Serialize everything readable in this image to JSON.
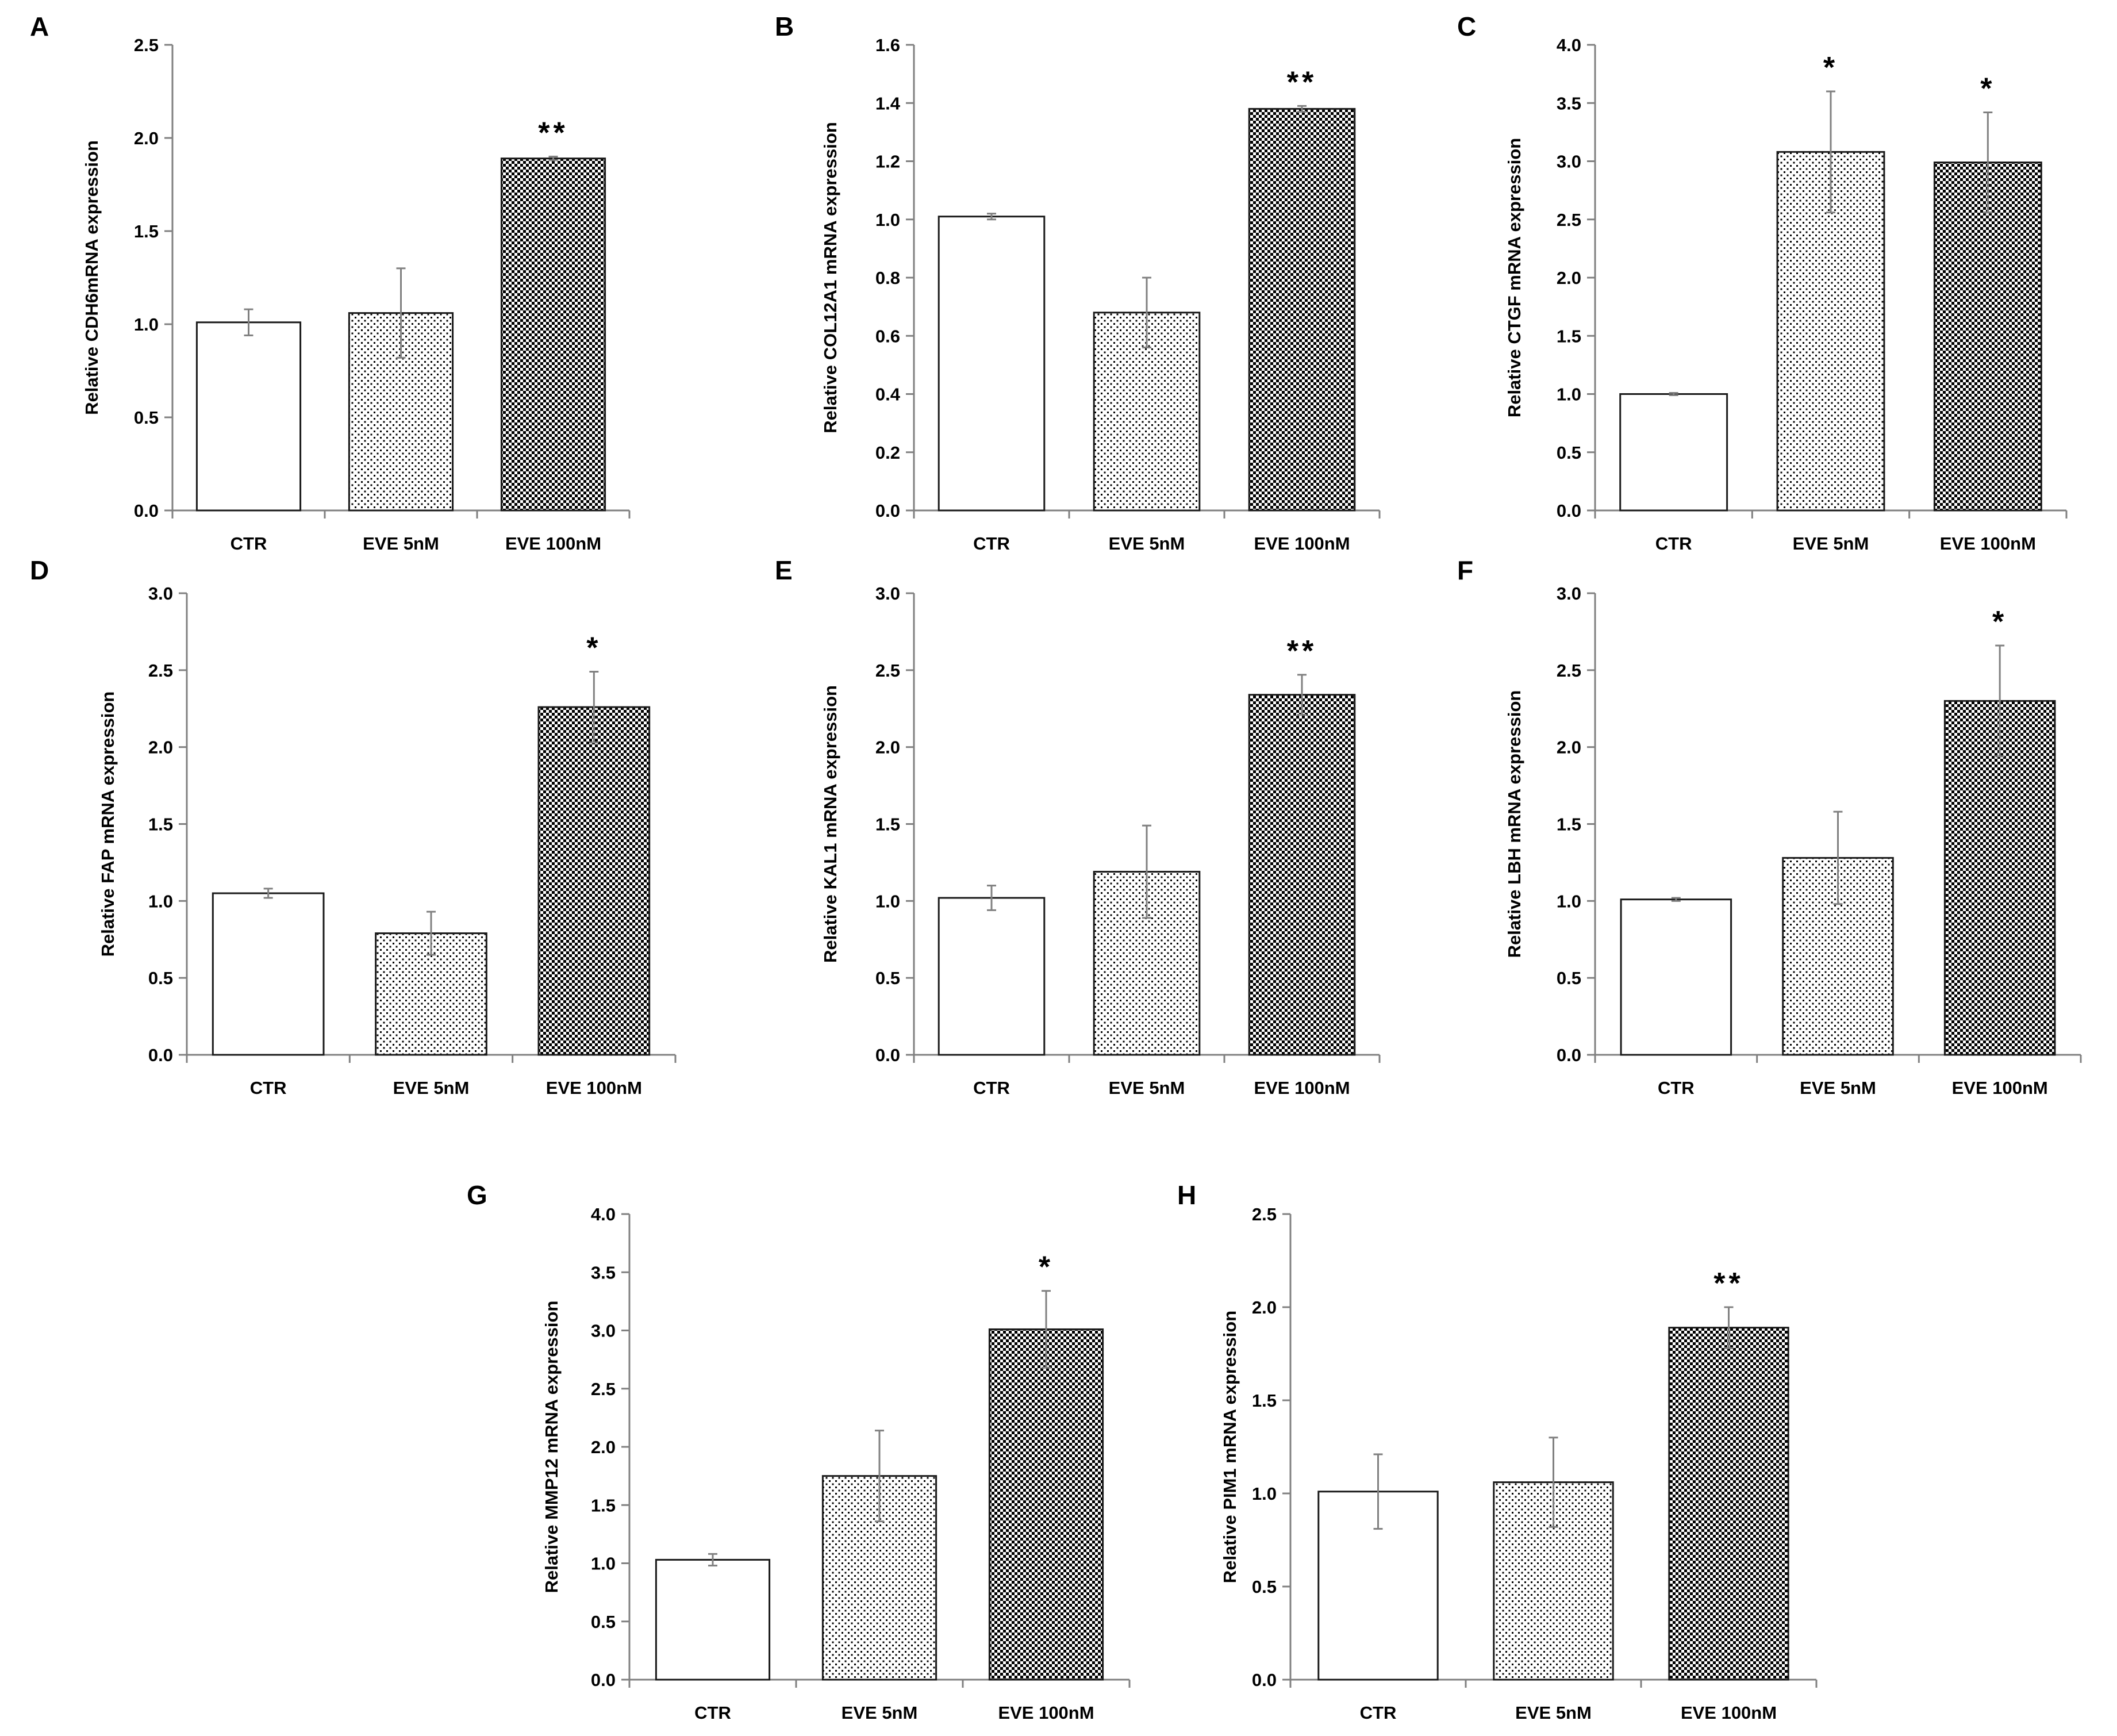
{
  "figure": {
    "colors": {
      "axis": "#808080",
      "bar_stroke": "#1a1a1a",
      "text": "#000000",
      "pattern_fill": "#000000",
      "background": "#ffffff"
    },
    "fill_patterns": [
      "white",
      "sparse-dots",
      "dense-checker"
    ]
  },
  "chart_data": [
    {
      "panel": "A",
      "type": "bar",
      "ylabel": "Relative CDH6mRNA expression",
      "ylim": [
        0,
        2.5
      ],
      "yticks": [
        "0.0",
        "0.5",
        "1.0",
        "1.5",
        "2.0",
        "2.5"
      ],
      "categories": [
        "CTR",
        "EVE 5nM",
        "EVE 100nM"
      ],
      "values": [
        1.01,
        1.06,
        1.89
      ],
      "errors": [
        0.07,
        0.24,
        0.01
      ],
      "significance": [
        "",
        "",
        "**"
      ]
    },
    {
      "panel": "B",
      "type": "bar",
      "ylabel": "Relative COL12A1 mRNA expression",
      "ylim": [
        0,
        1.6
      ],
      "yticks": [
        "0.0",
        "0.2",
        "0.4",
        "0.6",
        "0.8",
        "1.0",
        "1.2",
        "1.4",
        "1.6"
      ],
      "categories": [
        "CTR",
        "EVE 5nM",
        "EVE 100nM"
      ],
      "values": [
        1.01,
        0.68,
        1.38
      ],
      "errors": [
        0.01,
        0.12,
        0.01
      ],
      "significance": [
        "",
        "",
        "**"
      ]
    },
    {
      "panel": "C",
      "type": "bar",
      "ylabel": "Relative CTGF mRNA expression",
      "ylim": [
        0,
        4.0
      ],
      "yticks": [
        "0.0",
        "0.5",
        "1.0",
        "1.5",
        "2.0",
        "2.5",
        "3.0",
        "3.5",
        "4.0"
      ],
      "categories": [
        "CTR",
        "EVE 5nM",
        "EVE 100nM"
      ],
      "values": [
        1.0,
        3.08,
        2.99
      ],
      "errors": [
        0.01,
        0.52,
        0.43
      ],
      "significance": [
        "",
        "*",
        "*"
      ]
    },
    {
      "panel": "D",
      "type": "bar",
      "ylabel": "Relative FAP mRNA expression",
      "ylim": [
        0,
        3.0
      ],
      "yticks": [
        "0.0",
        "0.5",
        "1.0",
        "1.5",
        "2.0",
        "2.5",
        "3.0"
      ],
      "categories": [
        "CTR",
        "EVE 5nM",
        "EVE 100nM"
      ],
      "values": [
        1.05,
        0.79,
        2.26
      ],
      "errors": [
        0.03,
        0.14,
        0.23
      ],
      "significance": [
        "",
        "",
        "*"
      ]
    },
    {
      "panel": "E",
      "type": "bar",
      "ylabel": "Relative KAL1 mRNA expression",
      "ylim": [
        0,
        3.0
      ],
      "yticks": [
        "0.0",
        "0.5",
        "1.0",
        "1.5",
        "2.0",
        "2.5",
        "3.0"
      ],
      "categories": [
        "CTR",
        "EVE 5nM",
        "EVE 100nM"
      ],
      "values": [
        1.02,
        1.19,
        2.34
      ],
      "errors": [
        0.08,
        0.3,
        0.13
      ],
      "significance": [
        "",
        "",
        "**"
      ]
    },
    {
      "panel": "F",
      "type": "bar",
      "ylabel": "Relative LBH mRNA expression",
      "ylim": [
        0,
        3.0
      ],
      "yticks": [
        "0.0",
        "0.5",
        "1.0",
        "1.5",
        "2.0",
        "2.5",
        "3.0"
      ],
      "categories": [
        "CTR",
        "EVE 5nM",
        "EVE 100nM"
      ],
      "values": [
        1.01,
        1.28,
        2.3
      ],
      "errors": [
        0.01,
        0.3,
        0.36
      ],
      "significance": [
        "",
        "",
        "*"
      ]
    },
    {
      "panel": "G",
      "type": "bar",
      "ylabel": "Relative MMP12 mRNA expression",
      "ylim": [
        0,
        4.0
      ],
      "yticks": [
        "0.0",
        "0.5",
        "1.0",
        "1.5",
        "2.0",
        "2.5",
        "3.0",
        "3.5",
        "4.0"
      ],
      "categories": [
        "CTR",
        "EVE 5nM",
        "EVE 100nM"
      ],
      "values": [
        1.03,
        1.75,
        3.01
      ],
      "errors": [
        0.05,
        0.39,
        0.33
      ],
      "significance": [
        "",
        "",
        "*"
      ]
    },
    {
      "panel": "H",
      "type": "bar",
      "ylabel": "Relative PIM1 mRNA expression",
      "ylim": [
        0,
        2.5
      ],
      "yticks": [
        "0.0",
        "0.5",
        "1.0",
        "1.5",
        "2.0",
        "2.5"
      ],
      "categories": [
        "CTR",
        "EVE 5nM",
        "EVE 100nM"
      ],
      "values": [
        1.01,
        1.06,
        1.89
      ],
      "errors": [
        0.2,
        0.24,
        0.11
      ],
      "significance": [
        "",
        "",
        "**"
      ]
    }
  ]
}
